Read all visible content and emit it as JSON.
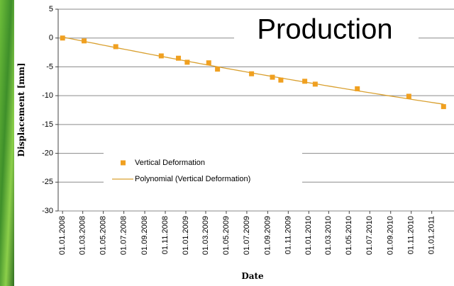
{
  "chart_data": {
    "type": "scatter",
    "title": "Production",
    "x_label": "Date",
    "y_label": "Displacement [mm]",
    "series": [
      {
        "name": "Vertical Deformation",
        "color": "#f0a020",
        "x": [
          "2008-01-01",
          "2008-03-05",
          "2008-06-07",
          "2008-10-20",
          "2008-12-10",
          "2009-01-05",
          "2009-03-10",
          "2009-04-05",
          "2009-07-15",
          "2009-09-15",
          "2009-10-10",
          "2009-12-20",
          "2010-01-20",
          "2010-05-25",
          "2010-10-25",
          "2011-02-05"
        ],
        "values": [
          0,
          -0.5,
          -1.5,
          -3.1,
          -3.5,
          -4.2,
          -4.3,
          -5.4,
          -6.2,
          -6.8,
          -7.3,
          -7.5,
          -8.0,
          -8.8,
          -10.1,
          -11.9
        ],
        "trendline": {
          "name": "Polynomial (Vertical Deformation)",
          "color": "#d9a030"
        }
      }
    ],
    "xlim": [
      "2007-12-19",
      "2011-03-08"
    ],
    "xticks": [
      {
        "value": "2008-01-01",
        "label": "01.01.2008"
      },
      {
        "value": "2008-03-01",
        "label": "01.03.2008"
      },
      {
        "value": "2008-05-01",
        "label": "01.05.2008"
      },
      {
        "value": "2008-07-01",
        "label": "01.07.2008"
      },
      {
        "value": "2008-09-01",
        "label": "01.09.2008"
      },
      {
        "value": "2008-11-01",
        "label": "01.11.2008"
      },
      {
        "value": "2009-01-01",
        "label": "01.01.2009"
      },
      {
        "value": "2009-03-01",
        "label": "01.03.2009"
      },
      {
        "value": "2009-05-01",
        "label": "01.05.2009"
      },
      {
        "value": "2009-07-01",
        "label": "01.07.2009"
      },
      {
        "value": "2009-09-01",
        "label": "01.09.2009"
      },
      {
        "value": "2009-11-01",
        "label": "01.11.2009"
      },
      {
        "value": "2010-01-01",
        "label": "01.01.2010"
      },
      {
        "value": "2010-03-01",
        "label": "01.03.2010"
      },
      {
        "value": "2010-05-01",
        "label": "01.05.2010"
      },
      {
        "value": "2010-07-01",
        "label": "01.07.2010"
      },
      {
        "value": "2010-09-01",
        "label": "01.09.2010"
      },
      {
        "value": "2010-11-01",
        "label": "01.11.2010"
      },
      {
        "value": "2011-01-01",
        "label": "01.01.2011"
      }
    ],
    "ylim": [
      -30,
      5
    ],
    "yticks": [
      5,
      0,
      -5,
      -10,
      -15,
      -20,
      -25,
      -30
    ],
    "grid": true,
    "legend": "lower left"
  }
}
